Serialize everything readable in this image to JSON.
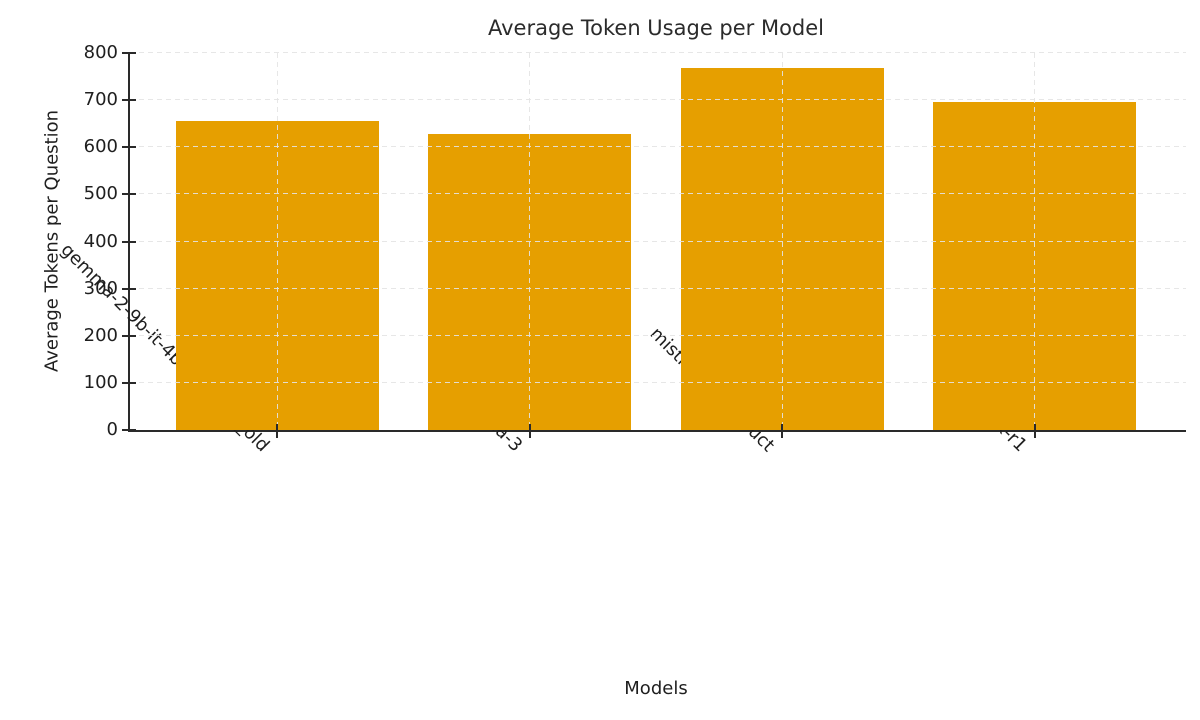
{
  "chart_data": {
    "type": "bar",
    "title": "Average Token Usage per Model",
    "xlabel": "Models",
    "ylabel": "Average Tokens per Question",
    "categories": [
      "gemma-2-9b-it-4bit-unsloth_old",
      "llama-3",
      "mistral-7b-instruct",
      "deepseek-r1"
    ],
    "values": [
      655,
      628,
      768,
      697
    ],
    "ylim": [
      0,
      800
    ],
    "yticks": [
      0,
      100,
      200,
      300,
      400,
      500,
      600,
      700,
      800
    ],
    "bar_color": "#E69F00",
    "grid": {
      "visible": true,
      "style": "dashed",
      "horizontal": true,
      "vertical": true
    },
    "legend_position": "none"
  },
  "colors": {
    "bar": "#E69F00",
    "grid": "#E4E4E4",
    "spine": "#2A2A2A",
    "text": "#1F1F1F",
    "background": "#FFFFFF"
  }
}
